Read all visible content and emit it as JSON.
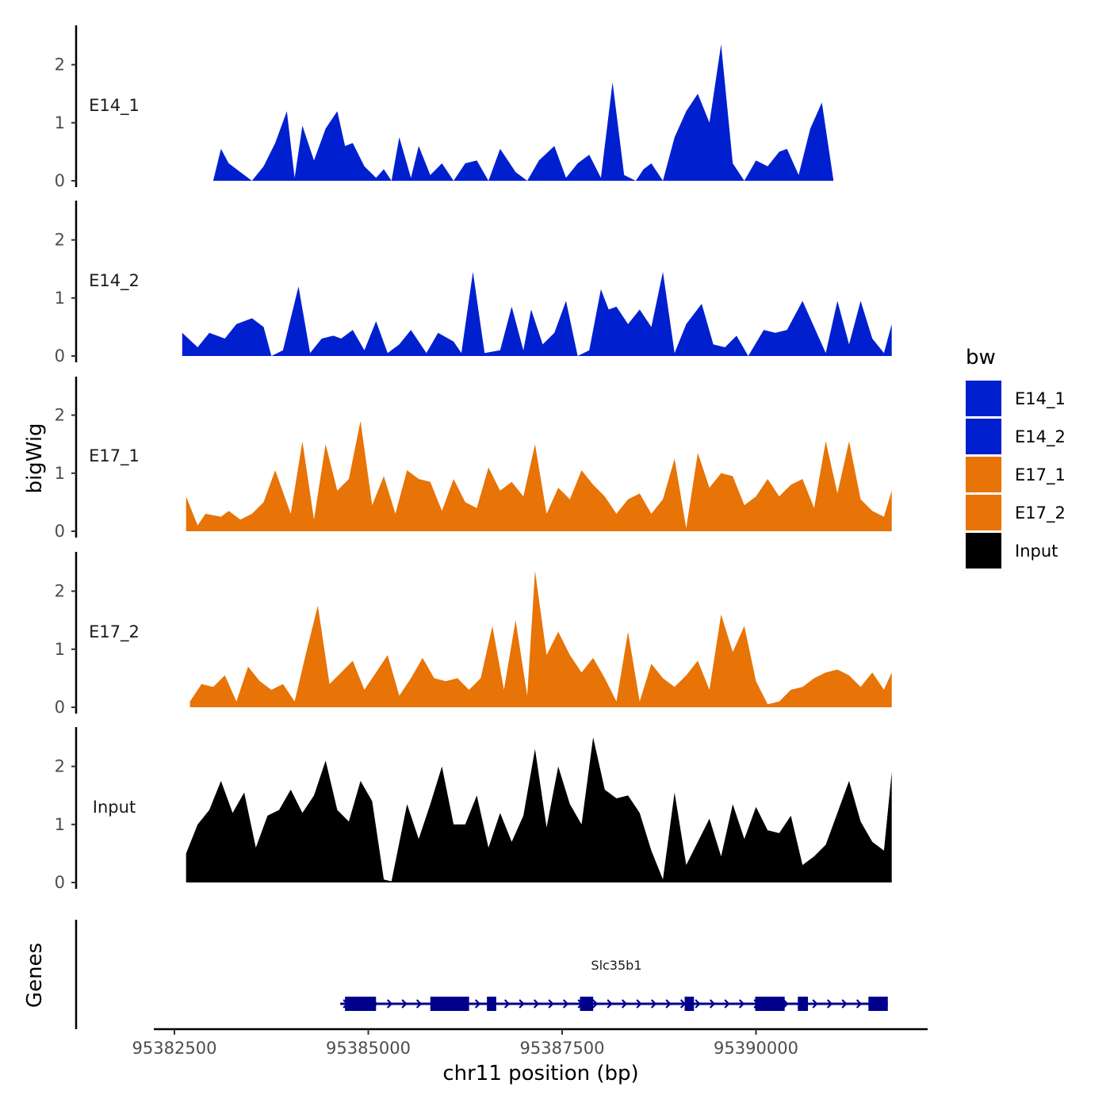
{
  "chart_data": {
    "type": "area",
    "title": "",
    "y_axis_title": "bigWig",
    "genes_axis_title": "Genes",
    "x_axis_title": "chr11 position (bp)",
    "xlim": [
      95382000,
      95392000
    ],
    "x_ticks": [
      95382500,
      95385000,
      95387500,
      95390000
    ],
    "x_tick_labels": [
      "95382500",
      "95385000",
      "95387500",
      "95390000"
    ],
    "ylim": [
      0,
      2.7
    ],
    "y_ticks": [
      0,
      1,
      2
    ],
    "y_tick_labels": [
      "0",
      "1",
      "2"
    ],
    "colors": {
      "E14": "#0020D0",
      "E17": "#E87306",
      "Input": "#000000",
      "gene": "#00008B",
      "axis": "#000000"
    },
    "tracks": [
      {
        "name": "E14_1",
        "color": "#0020D0",
        "x": [
          95382500,
          95383000,
          95383100,
          95383200,
          95383350,
          95383500,
          95383650,
          95383800,
          95383950,
          95384050,
          95384150,
          95384300,
          95384450,
          95384600,
          95384700,
          95384800,
          95384950,
          95385100,
          95385200,
          95385300,
          95385400,
          95385550,
          95385650,
          95385800,
          95385950,
          95386100,
          95386250,
          95386400,
          95386550,
          95386700,
          95386900,
          95387050,
          95387200,
          95387400,
          95387550,
          95387700,
          95387850,
          95388000,
          95388150,
          95388300,
          95388450,
          95388550,
          95388650,
          95388800,
          95388950,
          95389100,
          95389250,
          95389400,
          95389550,
          95389700,
          95389850,
          95390000,
          95390150,
          95390300,
          95390400,
          95390550,
          95390700,
          95390850,
          95391000,
          95391100,
          95391250,
          95391400,
          95391550,
          95391700,
          95391750
        ],
        "y": [
          0,
          0,
          0.55,
          0.3,
          0.15,
          0,
          0.25,
          0.65,
          1.2,
          0.05,
          0.95,
          0.35,
          0.9,
          1.2,
          0.6,
          0.65,
          0.25,
          0.05,
          0.2,
          0,
          0.75,
          0.05,
          0.6,
          0.1,
          0.3,
          0,
          0.3,
          0.35,
          0,
          0.55,
          0.15,
          0,
          0.35,
          0.6,
          0.05,
          0.3,
          0.45,
          0.05,
          1.7,
          0.1,
          0,
          0.2,
          0.3,
          0,
          0.75,
          1.2,
          1.5,
          1.0,
          2.35,
          0.3,
          0,
          0.35,
          0.25,
          0.5,
          0.55,
          0.1,
          0.9,
          1.35,
          0,
          0,
          0,
          0,
          0,
          0,
          0
        ]
      },
      {
        "name": "E14_2",
        "color": "#0020D0",
        "x": [
          95382600,
          95382800,
          95382950,
          95383150,
          95383300,
          95383500,
          95383650,
          95383750,
          95383900,
          95384100,
          95384250,
          95384400,
          95384550,
          95384650,
          95384800,
          95384950,
          95385100,
          95385250,
          95385400,
          95385550,
          95385750,
          95385900,
          95386100,
          95386200,
          95386350,
          95386500,
          95386700,
          95386850,
          95387000,
          95387100,
          95387250,
          95387400,
          95387550,
          95387700,
          95387850,
          95388000,
          95388100,
          95388200,
          95388350,
          95388500,
          95388650,
          95388800,
          95388950,
          95389100,
          95389300,
          95389450,
          95389600,
          95389750,
          95389900,
          95390100,
          95390250,
          95390400,
          95390600,
          95390750,
          95390900,
          95391050,
          95391200,
          95391350,
          95391500,
          95391650,
          95391750
        ],
        "y": [
          0.4,
          0.15,
          0.4,
          0.3,
          0.55,
          0.65,
          0.5,
          0,
          0.1,
          1.2,
          0.05,
          0.3,
          0.35,
          0.3,
          0.45,
          0.1,
          0.6,
          0.05,
          0.2,
          0.45,
          0.05,
          0.4,
          0.25,
          0.05,
          1.45,
          0.05,
          0.1,
          0.85,
          0.1,
          0.8,
          0.2,
          0.4,
          0.95,
          0,
          0.1,
          1.15,
          0.8,
          0.85,
          0.55,
          0.8,
          0.5,
          1.45,
          0.05,
          0.55,
          0.9,
          0.2,
          0.15,
          0.35,
          0,
          0.45,
          0.4,
          0.45,
          0.95,
          0.5,
          0.05,
          0.95,
          0.2,
          0.95,
          0.3,
          0.05,
          0.55
        ]
      },
      {
        "name": "E17_1",
        "color": "#E87306",
        "x": [
          95382650,
          95382800,
          95382900,
          95383100,
          95383200,
          95383350,
          95383500,
          95383650,
          95383800,
          95384000,
          95384150,
          95384300,
          95384450,
          95384600,
          95384750,
          95384900,
          95385050,
          95385200,
          95385350,
          95385500,
          95385650,
          95385800,
          95385950,
          95386100,
          95386250,
          95386400,
          95386550,
          95386700,
          95386850,
          95387000,
          95387150,
          95387300,
          95387450,
          95387600,
          95387750,
          95387900,
          95388050,
          95388200,
          95388350,
          95388500,
          95388650,
          95388800,
          95388950,
          95389100,
          95389250,
          95389400,
          95389550,
          95389700,
          95389850,
          95390000,
          95390150,
          95390300,
          95390450,
          95390600,
          95390750,
          95390900,
          95391050,
          95391200,
          95391350,
          95391500,
          95391650,
          95391750
        ],
        "y": [
          0.6,
          0.1,
          0.3,
          0.25,
          0.35,
          0.2,
          0.3,
          0.5,
          1.05,
          0.3,
          1.55,
          0.2,
          1.5,
          0.7,
          0.9,
          1.9,
          0.45,
          0.95,
          0.3,
          1.05,
          0.9,
          0.85,
          0.35,
          0.9,
          0.5,
          0.4,
          1.1,
          0.7,
          0.85,
          0.6,
          1.5,
          0.3,
          0.75,
          0.55,
          1.05,
          0.8,
          0.6,
          0.3,
          0.55,
          0.65,
          0.3,
          0.55,
          1.25,
          0.05,
          1.35,
          0.75,
          1.0,
          0.95,
          0.45,
          0.6,
          0.9,
          0.6,
          0.8,
          0.9,
          0.4,
          1.55,
          0.65,
          1.55,
          0.55,
          0.35,
          0.25,
          0.7
        ]
      },
      {
        "name": "E17_2",
        "color": "#E87306",
        "x": [
          95382700,
          95382850,
          95383000,
          95383150,
          95383300,
          95383450,
          95383600,
          95383750,
          95383900,
          95384050,
          95384200,
          95384350,
          95384500,
          95384650,
          95384800,
          95384950,
          95385100,
          95385250,
          95385400,
          95385550,
          95385700,
          95385850,
          95386000,
          95386150,
          95386300,
          95386450,
          95386600,
          95386750,
          95386900,
          95387050,
          95387150,
          95387300,
          95387450,
          95387600,
          95387750,
          95387900,
          95388050,
          95388200,
          95388350,
          95388500,
          95388650,
          95388800,
          95388950,
          95389100,
          95389250,
          95389400,
          95389550,
          95389700,
          95389850,
          95390000,
          95390150,
          95390300,
          95390450,
          95390600,
          95390750,
          95390900,
          95391050,
          95391200,
          95391350,
          95391500,
          95391650,
          95391750
        ],
        "y": [
          0.1,
          0.4,
          0.35,
          0.55,
          0.1,
          0.7,
          0.45,
          0.3,
          0.4,
          0.1,
          0.95,
          1.75,
          0.4,
          0.6,
          0.8,
          0.3,
          0.6,
          0.9,
          0.2,
          0.5,
          0.85,
          0.5,
          0.45,
          0.5,
          0.3,
          0.5,
          1.4,
          0.3,
          1.5,
          0.2,
          2.35,
          0.9,
          1.3,
          0.9,
          0.6,
          0.85,
          0.5,
          0.1,
          1.3,
          0.1,
          0.75,
          0.5,
          0.35,
          0.55,
          0.8,
          0.3,
          1.6,
          0.95,
          1.4,
          0.45,
          0.05,
          0.1,
          0.3,
          0.35,
          0.5,
          0.6,
          0.65,
          0.55,
          0.35,
          0.6,
          0.3,
          0.6
        ]
      },
      {
        "name": "Input",
        "color": "#000000",
        "x": [
          95382650,
          95382800,
          95382950,
          95383100,
          95383250,
          95383400,
          95383550,
          95383700,
          95383850,
          95384000,
          95384150,
          95384300,
          95384450,
          95384600,
          95384750,
          95384900,
          95385050,
          95385200,
          95385300,
          95385500,
          95385650,
          95385800,
          95385950,
          95386100,
          95386250,
          95386400,
          95386550,
          95386700,
          95386850,
          95387000,
          95387150,
          95387300,
          95387450,
          95387600,
          95387750,
          95387900,
          95388050,
          95388200,
          95388350,
          95388500,
          95388650,
          95388800,
          95388950,
          95389100,
          95389250,
          95389400,
          95389550,
          95389700,
          95389850,
          95390000,
          95390150,
          95390300,
          95390450,
          95390600,
          95390750,
          95390900,
          95391050,
          95391200,
          95391350,
          95391500,
          95391650,
          95391750
        ],
        "y": [
          0.5,
          1.0,
          1.25,
          1.75,
          1.2,
          1.55,
          0.6,
          1.15,
          1.25,
          1.6,
          1.2,
          1.5,
          2.1,
          1.25,
          1.05,
          1.75,
          1.4,
          0.05,
          0.02,
          1.35,
          0.75,
          1.35,
          2.0,
          1.0,
          1.0,
          1.5,
          0.6,
          1.2,
          0.7,
          1.15,
          2.3,
          0.95,
          2.0,
          1.35,
          1.0,
          2.5,
          1.6,
          1.45,
          1.5,
          1.2,
          0.55,
          0.05,
          1.55,
          0.3,
          0.7,
          1.1,
          0.45,
          1.35,
          0.75,
          1.3,
          0.9,
          0.85,
          1.15,
          0.3,
          0.45,
          0.65,
          1.2,
          1.75,
          1.05,
          0.7,
          0.55,
          1.9
        ]
      }
    ],
    "legend": {
      "title": "bw",
      "position": "right",
      "entries": [
        {
          "label": "E14_1",
          "color": "#0020D0"
        },
        {
          "label": "E14_2",
          "color": "#0020D0"
        },
        {
          "label": "E17_1",
          "color": "#E87306"
        },
        {
          "label": "E17_2",
          "color": "#E87306"
        },
        {
          "label": "Input",
          "color": "#000000"
        }
      ]
    },
    "gene": {
      "name": "Slc35b1",
      "start": 95384700,
      "end": 95391700,
      "strand": "+",
      "exons": [
        [
          95384700,
          95385100
        ],
        [
          95385800,
          95386300
        ],
        [
          95386530,
          95386650
        ],
        [
          95387730,
          95387900
        ],
        [
          95389080,
          95389200
        ],
        [
          95389990,
          95390370
        ],
        [
          95390540,
          95390670
        ],
        [
          95391450,
          95391700
        ]
      ]
    }
  }
}
